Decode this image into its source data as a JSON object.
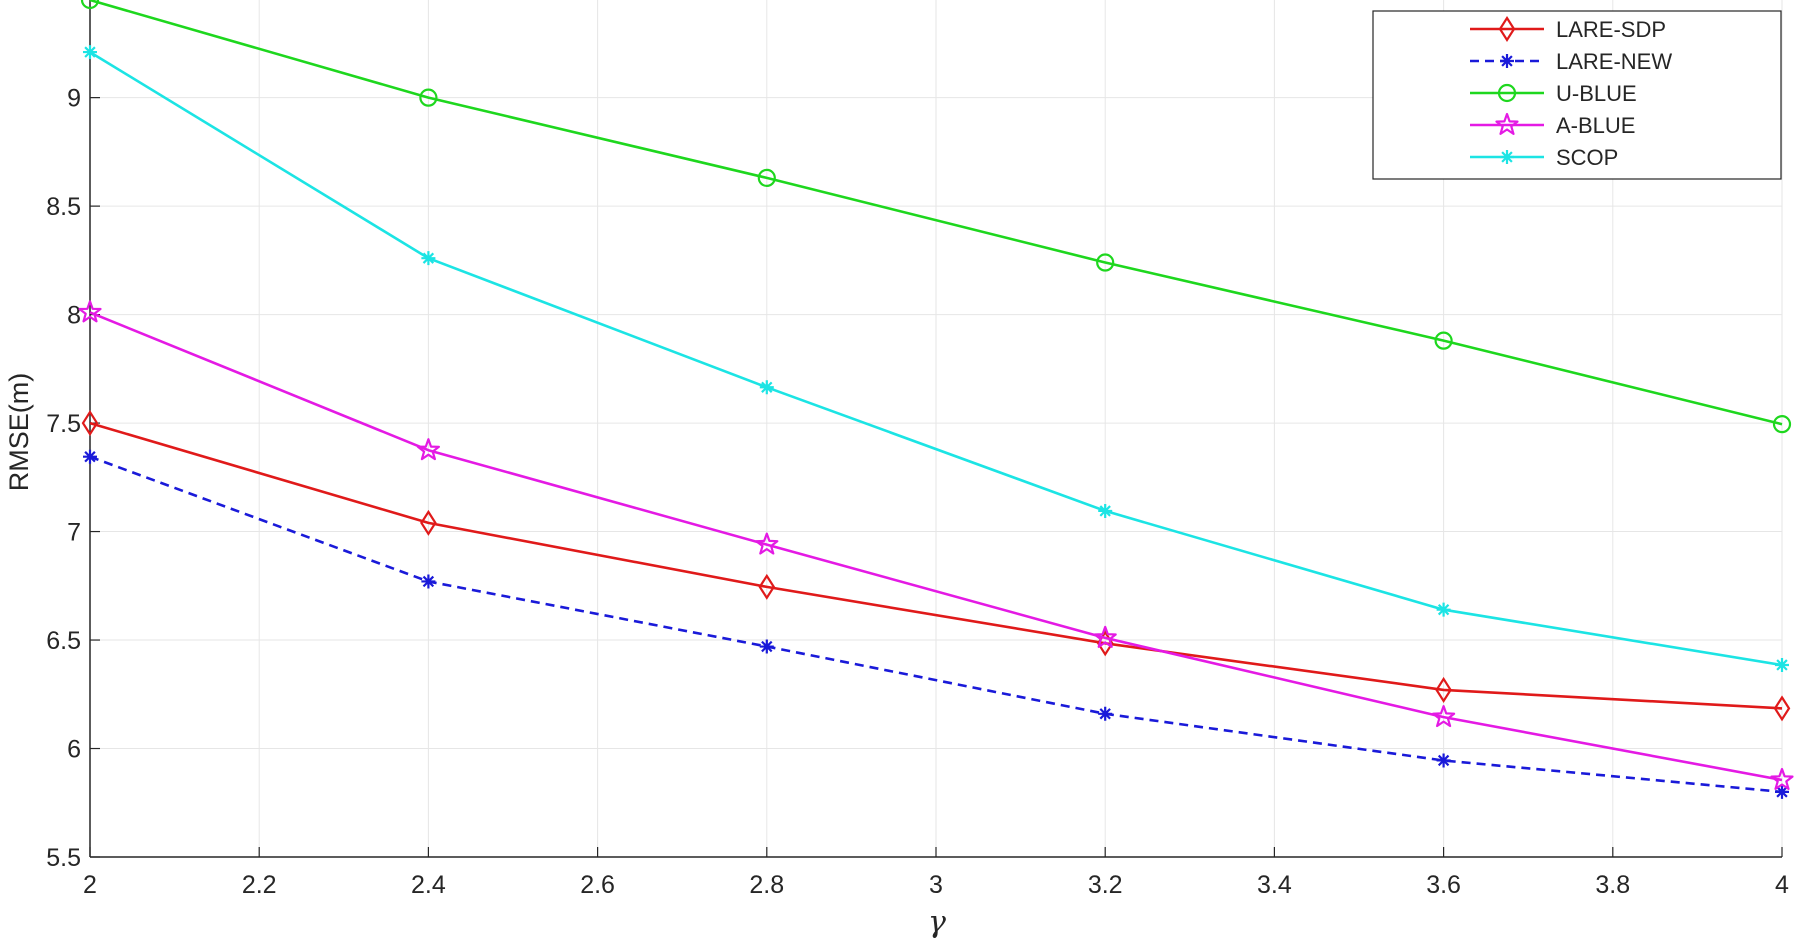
{
  "chart_data": {
    "type": "line",
    "title": "",
    "xlabel": "γ",
    "ylabel": "RMSE(m)",
    "xlim": [
      2,
      4
    ],
    "ylim": [
      5.5,
      9.45
    ],
    "xticks": [
      2,
      2.2,
      2.4,
      2.6,
      2.8,
      3,
      3.2,
      3.4,
      3.6,
      3.8,
      4
    ],
    "xtick_labels": [
      "2",
      "2.2",
      "2.4",
      "2.6",
      "2.8",
      "3",
      "3.2",
      "3.4",
      "3.6",
      "3.8",
      "4"
    ],
    "yticks": [
      5.5,
      6,
      6.5,
      7,
      7.5,
      8,
      8.5,
      9
    ],
    "ytick_labels": [
      "5.5",
      "6",
      "6.5",
      "7",
      "7.5",
      "8",
      "8.5",
      "9"
    ],
    "grid": true,
    "legend_position": "top-right",
    "x": [
      2,
      2.4,
      2.8,
      3.2,
      3.6,
      4
    ],
    "series": [
      {
        "name": "LARE-SDP",
        "values": [
          7.5,
          7.04,
          6.745,
          6.485,
          6.27,
          6.185
        ],
        "color": "#e01a1a",
        "marker": "diamond",
        "dash": "solid"
      },
      {
        "name": "LARE-NEW",
        "values": [
          7.345,
          6.77,
          6.47,
          6.16,
          5.945,
          5.8
        ],
        "color": "#1a1ad9",
        "marker": "asterisk",
        "dash": "dashed"
      },
      {
        "name": "U-BLUE",
        "values": [
          9.45,
          9.0,
          8.63,
          8.24,
          7.88,
          7.495
        ],
        "color": "#1ed71e",
        "marker": "circle",
        "dash": "solid"
      },
      {
        "name": "A-BLUE",
        "values": [
          8.01,
          7.375,
          6.94,
          6.51,
          6.145,
          5.855
        ],
        "color": "#e41ae4",
        "marker": "star",
        "dash": "solid"
      },
      {
        "name": "SCOP",
        "values": [
          9.21,
          8.26,
          7.665,
          7.095,
          6.64,
          6.385
        ],
        "color": "#1ce4e4",
        "marker": "asterisk",
        "dash": "solid"
      }
    ]
  }
}
